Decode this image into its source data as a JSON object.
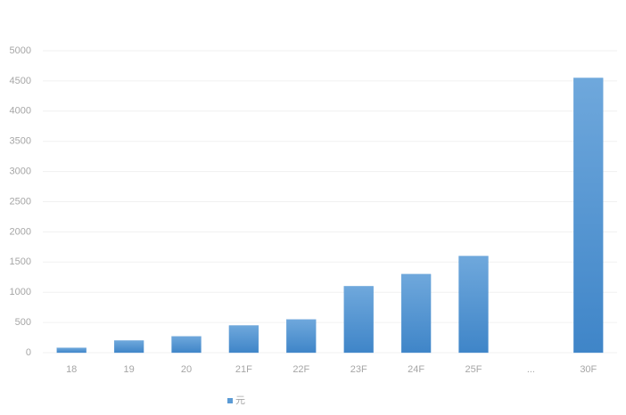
{
  "chart_data": {
    "type": "bar",
    "categories": [
      "18",
      "19",
      "20",
      "21F",
      "22F",
      "23F",
      "24F",
      "25F",
      "...",
      "30F"
    ],
    "series": [
      {
        "name": "元",
        "color": "#5b9bd5",
        "values": [
          80,
          200,
          270,
          450,
          550,
          1100,
          1300,
          1600,
          null,
          4550
        ]
      }
    ],
    "ylim": [
      0,
      5000
    ],
    "yticks": [
      0,
      500,
      1000,
      1500,
      2000,
      2500,
      3000,
      3500,
      4000,
      4500,
      5000
    ],
    "grid": true,
    "legend": "bottom"
  }
}
